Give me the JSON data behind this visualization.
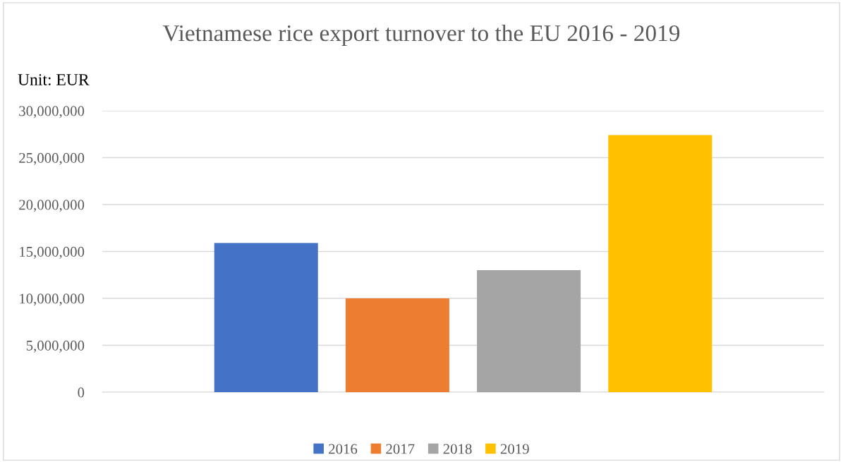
{
  "chart_data": {
    "type": "bar",
    "title": "Vietnamese rice export turnover to the EU 2016 - 2019",
    "ylabel": "Unit: EUR",
    "categories": [
      null
    ],
    "series": [
      {
        "name": "2016",
        "color": "#4472c4",
        "values": [
          15900000
        ]
      },
      {
        "name": "2017",
        "color": "#ed7d31",
        "values": [
          10000000
        ]
      },
      {
        "name": "2018",
        "color": "#a5a5a5",
        "values": [
          13000000
        ]
      },
      {
        "name": "2019",
        "color": "#ffc000",
        "values": [
          27400000
        ]
      }
    ],
    "ylim": [
      0,
      30000000
    ],
    "yticks": [
      {
        "value": 0,
        "label": "0"
      },
      {
        "value": 5000000,
        "label": "5,000,000"
      },
      {
        "value": 10000000,
        "label": "10,000,000"
      },
      {
        "value": 15000000,
        "label": "15,000,000"
      },
      {
        "value": 20000000,
        "label": "20,000,000"
      },
      {
        "value": 25000000,
        "label": "25,000,000"
      },
      {
        "value": 30000000,
        "label": "30,000,000"
      }
    ],
    "grid": "y",
    "legend": "bottom"
  }
}
